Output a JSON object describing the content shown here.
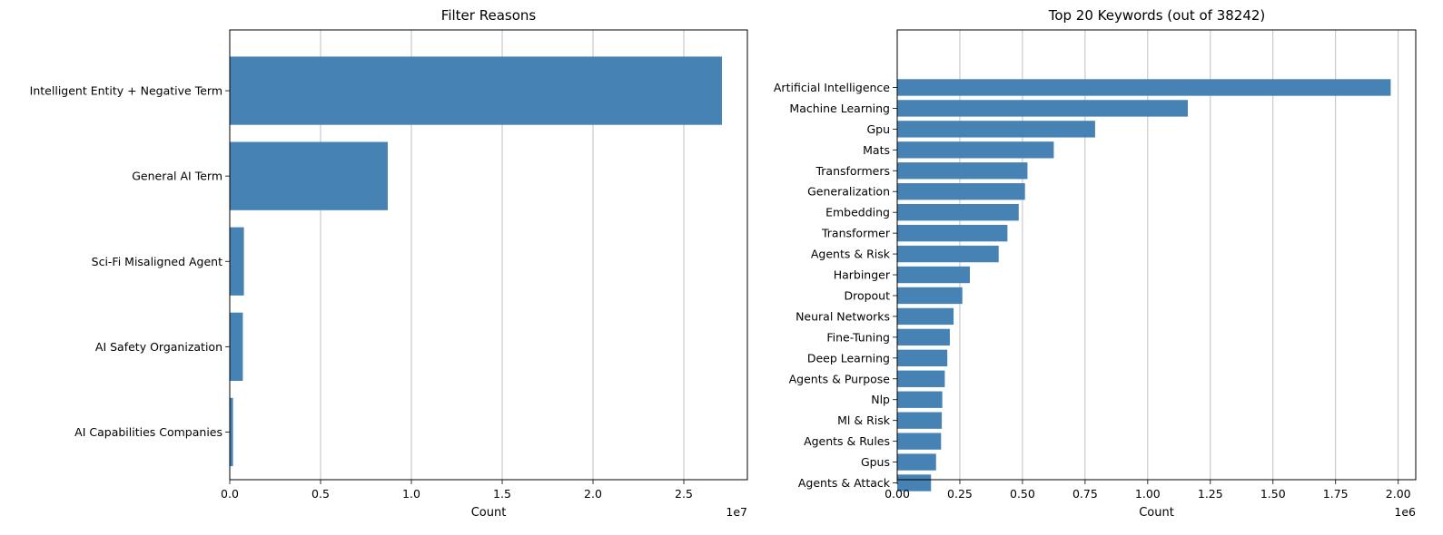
{
  "chart_data": [
    {
      "type": "bar",
      "orientation": "horizontal",
      "title": "Filter Reasons",
      "xlabel": "Count",
      "ylabel": "",
      "x_scale_label": "1e7",
      "xlim": [
        0,
        28500000
      ],
      "x_ticks": [
        {
          "value": 0,
          "label": "0.0"
        },
        {
          "value": 5000000,
          "label": "0.5"
        },
        {
          "value": 10000000,
          "label": "1.0"
        },
        {
          "value": 15000000,
          "label": "1.5"
        },
        {
          "value": 20000000,
          "label": "2.0"
        },
        {
          "value": 25000000,
          "label": "2.5"
        }
      ],
      "grid": "x",
      "color": "#4682b4",
      "categories": [
        "Intelligent Entity + Negative Term",
        "General AI Term",
        "Sci-Fi Misaligned Agent",
        "AI Safety Organization",
        "AI Capabilities Companies"
      ],
      "values": [
        27100000,
        8700000,
        780000,
        720000,
        180000
      ]
    },
    {
      "type": "bar",
      "orientation": "horizontal",
      "title": "Top 20 Keywords (out of 38242)",
      "xlabel": "Count",
      "ylabel": "",
      "x_scale_label": "1e6",
      "xlim": [
        0,
        2070000
      ],
      "x_ticks": [
        {
          "value": 0,
          "label": "0.00"
        },
        {
          "value": 250000,
          "label": "0.25"
        },
        {
          "value": 500000,
          "label": "0.50"
        },
        {
          "value": 750000,
          "label": "0.75"
        },
        {
          "value": 1000000,
          "label": "1.00"
        },
        {
          "value": 1250000,
          "label": "1.25"
        },
        {
          "value": 1500000,
          "label": "1.50"
        },
        {
          "value": 1750000,
          "label": "1.75"
        },
        {
          "value": 2000000,
          "label": "2.00"
        }
      ],
      "grid": "x",
      "color": "#4682b4",
      "categories": [
        "Artificial Intelligence",
        "Machine Learning",
        "Gpu",
        "Mats",
        "Transformers",
        "Generalization",
        "Embedding",
        "Transformer",
        "Agents & Risk",
        "Harbinger",
        "Dropout",
        "Neural Networks",
        "Fine-Tuning",
        "Deep Learning",
        "Agents & Purpose",
        "Nlp",
        "Ml & Risk",
        "Agents & Rules",
        "Gpus",
        "Agents & Attack"
      ],
      "values": [
        1970000,
        1160000,
        790000,
        625000,
        520000,
        510000,
        485000,
        440000,
        405000,
        290000,
        260000,
        225000,
        210000,
        200000,
        190000,
        180000,
        178000,
        175000,
        155000,
        135000
      ]
    }
  ]
}
